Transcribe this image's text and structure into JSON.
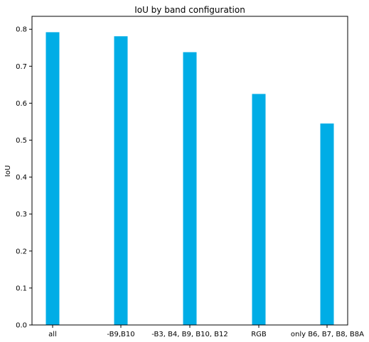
{
  "chart_data": {
    "type": "bar",
    "title": "IoU by band configuration",
    "xlabel": "",
    "ylabel": "IoU",
    "categories": [
      "all",
      "-B9,B10",
      "-B3, B4, B9, B10, B12",
      "RGB",
      "only B6, B7, B8, B8A"
    ],
    "values": [
      0.792,
      0.781,
      0.738,
      0.625,
      0.545
    ],
    "ylim": [
      0,
      0.835
    ],
    "yticks": [
      "0.0",
      "0.1",
      "0.2",
      "0.3",
      "0.4",
      "0.5",
      "0.6",
      "0.7",
      "0.8"
    ],
    "bar_color": "#00ADE6",
    "grid": false,
    "legend": false
  }
}
